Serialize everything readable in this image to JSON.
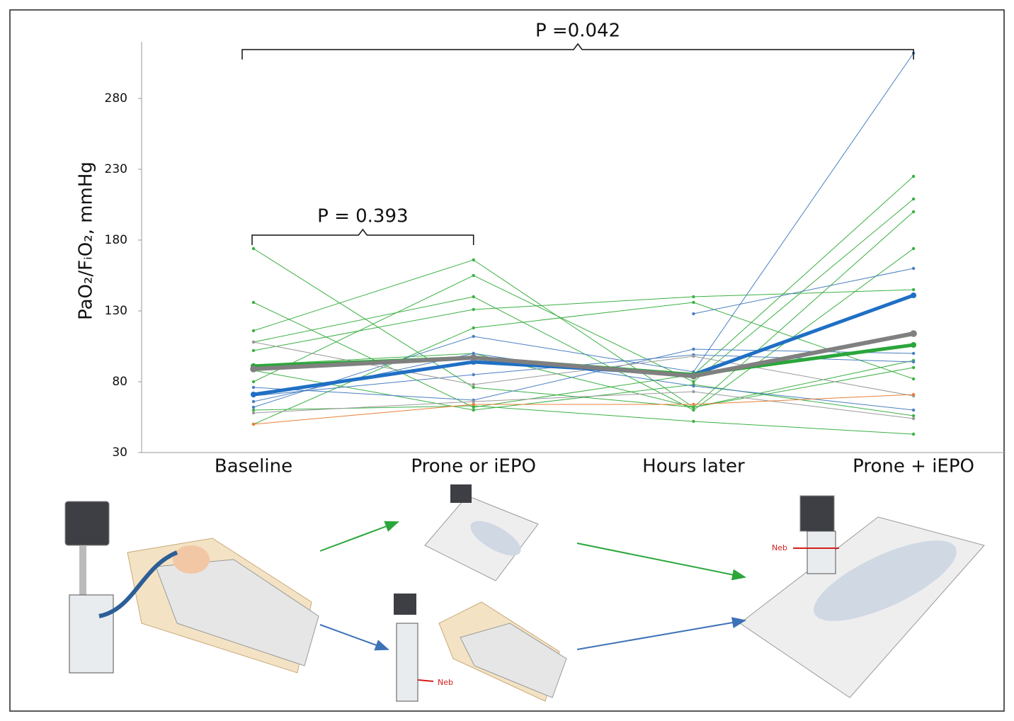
{
  "chart_data": {
    "type": "line",
    "y_label": "PaO₂/FᵢO₂, mmHg",
    "annotations": [
      "P =0.042",
      "P = 0.393"
    ],
    "categories": [
      "Baseline",
      "Prone or iEPO",
      "Hours later",
      "Prone + iEPO"
    ],
    "ylim": [
      30,
      320
    ],
    "yticks": [
      30,
      80,
      130,
      180,
      230,
      280
    ],
    "grid": false,
    "series": [
      {
        "color": "#3cb043",
        "width": 1,
        "values": [
          174,
          76,
          62,
          95
        ]
      },
      {
        "color": "#3cb043",
        "width": 1,
        "values": [
          136,
          62,
          85,
          225
        ]
      },
      {
        "color": "#3cb043",
        "width": 1,
        "values": [
          116,
          166,
          62,
          200
        ]
      },
      {
        "color": "#3cb043",
        "width": 1,
        "values": [
          108,
          140,
          60,
          174
        ]
      },
      {
        "color": "#3cb043",
        "width": 1,
        "values": [
          102,
          131,
          140,
          145
        ]
      },
      {
        "color": "#3cb043",
        "width": 1,
        "values": [
          80,
          155,
          80,
          209
        ]
      },
      {
        "color": "#3cb043",
        "width": 1,
        "values": [
          60,
          63,
          52,
          43
        ]
      },
      {
        "color": "#3cb043",
        "width": 1,
        "values": [
          50,
          118,
          136,
          82
        ]
      },
      {
        "color": "#3cb043",
        "width": 1,
        "values": [
          92,
          100,
          62,
          90
        ]
      },
      {
        "color": "#3cb043",
        "width": 1,
        "values": [
          88,
          60,
          78,
          56
        ]
      },
      {
        "color": "#4a7fc1",
        "width": 1,
        "values": [
          62,
          112,
          87,
          312
        ]
      },
      {
        "color": "#4a7fc1",
        "width": 1,
        "values": [
          null,
          null,
          128,
          160
        ]
      },
      {
        "color": "#4a7fc1",
        "width": 1,
        "values": [
          76,
          67,
          103,
          100
        ]
      },
      {
        "color": "#4a7fc1",
        "width": 1,
        "values": [
          66,
          100,
          77,
          60
        ]
      },
      {
        "color": "#4a7fc1",
        "width": 1,
        "values": [
          70,
          85,
          99,
          94
        ]
      },
      {
        "color": "#9a9a9a",
        "width": 1,
        "values": [
          108,
          78,
          98,
          70
        ]
      },
      {
        "color": "#9a9a9a",
        "width": 1,
        "values": [
          58,
          66,
          73,
          54
        ]
      },
      {
        "color": "#e8803a",
        "width": 1,
        "values": [
          50,
          64,
          64,
          71
        ]
      },
      {
        "color": "#1f6fc5",
        "width": 5,
        "values": [
          71,
          94,
          85,
          141
        ]
      },
      {
        "color": "#2aa63a",
        "width": 5,
        "values": [
          91,
          97,
          85,
          106
        ]
      },
      {
        "color": "#808080",
        "width": 6,
        "values": [
          89,
          97,
          84,
          114
        ]
      }
    ]
  },
  "illustration": {
    "labels": [
      "Neb",
      "Neb"
    ]
  }
}
